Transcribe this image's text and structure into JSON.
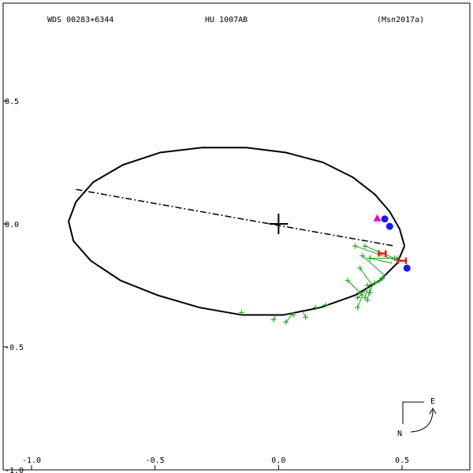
{
  "header": {
    "wds": "WDS 00283+6344",
    "discoverer": "HU 1007AB",
    "reference": "(Msn2017a)"
  },
  "chart_data": {
    "type": "scatter",
    "xlim": [
      -1.0,
      0.5
    ],
    "ylim": [
      -1.0,
      0.5
    ],
    "x_ticks": [
      {
        "value": -1.0,
        "label": "-1.0"
      },
      {
        "value": -0.5,
        "label": "-0.5"
      },
      {
        "value": 0.0,
        "label": "0.0"
      },
      {
        "value": 0.5,
        "label": "0.5"
      }
    ],
    "y_ticks": [
      {
        "value": 0.5,
        "label": "0.5"
      },
      {
        "value": 0.0,
        "label": "0.0"
      },
      {
        "value": -0.5,
        "label": "-0.5"
      },
      {
        "value": -1.0,
        "label": "-1.0"
      }
    ],
    "compass": {
      "east": "E",
      "north": "N"
    },
    "orbit": {
      "path": [
        [
          0.51,
          -0.09
        ],
        [
          0.49,
          -0.02
        ],
        [
          0.45,
          0.05
        ],
        [
          0.39,
          0.12
        ],
        [
          0.3,
          0.19
        ],
        [
          0.18,
          0.25
        ],
        [
          0.03,
          0.29
        ],
        [
          -0.13,
          0.31
        ],
        [
          -0.31,
          0.31
        ],
        [
          -0.48,
          0.29
        ],
        [
          -0.63,
          0.24
        ],
        [
          -0.75,
          0.17
        ],
        [
          -0.82,
          0.09
        ],
        [
          -0.85,
          0.01
        ],
        [
          -0.83,
          -0.07
        ],
        [
          -0.76,
          -0.15
        ],
        [
          -0.64,
          -0.23
        ],
        [
          -0.49,
          -0.29
        ],
        [
          -0.32,
          -0.34
        ],
        [
          -0.15,
          -0.37
        ],
        [
          0.02,
          -0.37
        ],
        [
          0.17,
          -0.34
        ],
        [
          0.31,
          -0.29
        ],
        [
          0.41,
          -0.23
        ],
        [
          0.48,
          -0.16
        ],
        [
          0.51,
          -0.09
        ]
      ]
    },
    "line_of_apsides": [
      [
        -0.82,
        0.14
      ],
      [
        0.47,
        -0.09
      ]
    ],
    "primary": [
      0.0,
      0.0
    ],
    "periastron_marker": [
      0.4,
      0.02
    ],
    "observations": [
      {
        "obs": [
          -0.15,
          -0.36
        ],
        "fit": [
          -0.15,
          -0.37
        ]
      },
      {
        "obs": [
          -0.02,
          -0.39
        ],
        "fit": [
          -0.01,
          -0.37
        ]
      },
      {
        "obs": [
          0.03,
          -0.4
        ],
        "fit": [
          0.06,
          -0.36
        ]
      },
      {
        "obs": [
          0.06,
          -0.37
        ],
        "fit": [
          0.05,
          -0.36
        ]
      },
      {
        "obs": [
          0.11,
          -0.38
        ],
        "fit": [
          0.1,
          -0.36
        ]
      },
      {
        "obs": [
          0.15,
          -0.34
        ],
        "fit": [
          0.14,
          -0.34
        ]
      },
      {
        "obs": [
          0.19,
          -0.33
        ],
        "fit": [
          0.18,
          -0.33
        ]
      },
      {
        "obs": [
          0.28,
          -0.23
        ],
        "fit": [
          0.34,
          -0.29
        ]
      },
      {
        "obs": [
          0.32,
          -0.3
        ],
        "fit": [
          0.35,
          -0.28
        ]
      },
      {
        "obs": [
          0.32,
          -0.34
        ],
        "fit": [
          0.34,
          -0.29
        ]
      },
      {
        "obs": [
          0.33,
          -0.28
        ],
        "fit": [
          0.36,
          -0.27
        ]
      },
      {
        "obs": [
          0.35,
          -0.3
        ],
        "fit": [
          0.36,
          -0.27
        ]
      },
      {
        "obs": [
          0.36,
          -0.31
        ],
        "fit": [
          0.37,
          -0.26
        ]
      },
      {
        "obs": [
          0.37,
          -0.28
        ],
        "fit": [
          0.38,
          -0.25
        ]
      },
      {
        "obs": [
          0.36,
          -0.25
        ],
        "fit": [
          0.4,
          -0.24
        ]
      },
      {
        "obs": [
          0.33,
          -0.18
        ],
        "fit": [
          0.38,
          -0.25
        ]
      },
      {
        "obs": [
          0.39,
          -0.24
        ],
        "fit": [
          0.43,
          -0.22
        ]
      },
      {
        "obs": [
          0.41,
          -0.23
        ],
        "fit": [
          0.43,
          -0.21
        ]
      },
      {
        "obs": [
          0.42,
          -0.22
        ],
        "fit": [
          0.43,
          -0.21
        ]
      },
      {
        "obs": [
          0.34,
          -0.13
        ],
        "fit": [
          0.43,
          -0.21
        ]
      },
      {
        "obs": [
          0.37,
          -0.14
        ],
        "fit": [
          0.46,
          -0.16
        ]
      },
      {
        "obs": [
          0.31,
          -0.09
        ],
        "fit": [
          0.48,
          -0.15
        ]
      },
      {
        "obs": [
          0.35,
          -0.09
        ],
        "fit": [
          0.47,
          -0.14
        ]
      },
      {
        "obs": [
          0.37,
          -0.14
        ],
        "fit": [
          0.46,
          -0.14
        ]
      },
      {
        "obs": [
          0.47,
          -0.14
        ],
        "fit": [
          0.48,
          -0.15
        ]
      },
      {
        "obs": [
          0.48,
          -0.14
        ],
        "fit": [
          0.48,
          -0.15
        ]
      }
    ],
    "speckle_points": [
      {
        "x": 0.42,
        "y": -0.12,
        "w": 0.028
      },
      {
        "x": 0.5,
        "y": -0.15,
        "w": 0.032
      }
    ],
    "blue_points": [
      [
        0.43,
        0.02
      ],
      [
        0.45,
        -0.01
      ],
      [
        0.52,
        -0.18
      ]
    ],
    "colors": {
      "orbit": "#000000",
      "observation": "#1a9e1a",
      "speckle": "#e01a1a",
      "blue": "#1a1ae6",
      "periastron": "#e000e0"
    }
  }
}
